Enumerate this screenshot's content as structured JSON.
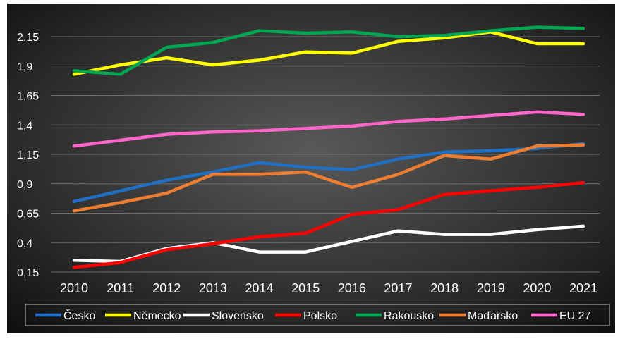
{
  "chart_data": {
    "type": "line",
    "title": "",
    "xlabel": "",
    "ylabel": "",
    "x": [
      "2010",
      "2011",
      "2012",
      "2013",
      "2014",
      "2015",
      "2016",
      "2017",
      "2018",
      "2019",
      "2020",
      "2021"
    ],
    "yticks": [
      "0,15",
      "0,4",
      "0,65",
      "0,9",
      "1,15",
      "1,4",
      "1,65",
      "1,9",
      "2,15"
    ],
    "ylim": [
      0.15,
      2.25
    ],
    "grid": "horizontal",
    "legend_position": "bottom",
    "series": [
      {
        "name": "Česko",
        "color": "#1f6fc4",
        "values": [
          0.75,
          0.84,
          0.93,
          1.0,
          1.08,
          1.04,
          1.02,
          1.11,
          1.17,
          1.18,
          1.2,
          1.24
        ]
      },
      {
        "name": "Německo",
        "color": "#ffff00",
        "values": [
          1.83,
          1.91,
          1.97,
          1.91,
          1.95,
          2.02,
          2.01,
          2.11,
          2.14,
          2.19,
          2.09,
          2.09
        ]
      },
      {
        "name": "Slovensko",
        "color": "#ffffff",
        "values": [
          0.25,
          0.24,
          0.35,
          0.4,
          0.32,
          0.32,
          0.41,
          0.5,
          0.47,
          0.47,
          0.51,
          0.54
        ]
      },
      {
        "name": "Polsko",
        "color": "#ff0000",
        "values": [
          0.19,
          0.23,
          0.34,
          0.39,
          0.45,
          0.48,
          0.64,
          0.68,
          0.81,
          0.84,
          0.87,
          0.91
        ]
      },
      {
        "name": "Rakousko",
        "color": "#00a651",
        "values": [
          1.86,
          1.83,
          2.06,
          2.1,
          2.2,
          2.18,
          2.19,
          2.15,
          2.16,
          2.2,
          2.23,
          2.22
        ]
      },
      {
        "name": "Maďarsko",
        "color": "#ed7d31",
        "values": [
          0.67,
          0.74,
          0.82,
          0.98,
          0.98,
          1.0,
          0.87,
          0.98,
          1.14,
          1.11,
          1.22,
          1.23
        ]
      },
      {
        "name": "EU 27",
        "color": "#ff66cc",
        "values": [
          1.22,
          1.27,
          1.32,
          1.34,
          1.35,
          1.37,
          1.39,
          1.43,
          1.45,
          1.48,
          1.51,
          1.49
        ]
      }
    ]
  }
}
